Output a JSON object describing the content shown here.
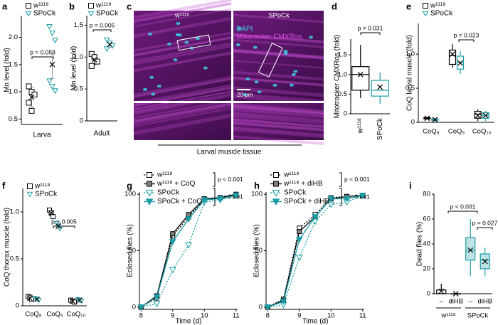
{
  "microscopy": {
    "panel": "c",
    "titles": [
      "w¹¹¹⁸",
      "SPoCk"
    ],
    "channels": [
      "DAPI",
      "Mitotracker CMXRos"
    ],
    "scale_bar": "20 μm",
    "xlabel": "Larval muscle tissue"
  },
  "chart_data": [
    {
      "panel": "a",
      "type": "strip",
      "ylabel": "Mn level (fold)",
      "xlabel": "Larva",
      "ylim": [
        0.4,
        2.4
      ],
      "yticks": [
        0.5,
        {
          "value": 1,
          "label": "1.0"
        },
        1.5,
        {
          "value": 2,
          "label": "2.0"
        }
      ],
      "series": [
        {
          "name": "w¹¹¹⁸",
          "color": "#000000",
          "marker": "square",
          "values": [
            1.1,
            1.0,
            0.95,
            0.8,
            0.65
          ],
          "mean": 0.9,
          "sd": 0.18
        },
        {
          "name": "SPoCk",
          "color": "#1a9da5",
          "marker": "triangle",
          "values": [
            2.2,
            2.08,
            1.95,
            1.2,
            1.1,
            1.02
          ],
          "mean": 1.5,
          "sd": 0.25
        }
      ],
      "annotations": [
        "p = 0.053"
      ]
    },
    {
      "panel": "b",
      "type": "strip",
      "ylabel": "Mn level (fold)",
      "xlabel": "Adult",
      "ylim": [
        0,
        1.65
      ],
      "yticks": [
        0,
        0.5,
        {
          "value": 1,
          "label": "1.0"
        },
        1.5
      ],
      "series": [
        {
          "name": "w¹¹¹⁸",
          "color": "#000000",
          "marker": "square",
          "values": [
            1.05,
            1.0,
            0.93,
            0.86
          ],
          "mean": 0.96,
          "sd": 0.08
        },
        {
          "name": "SPoCk",
          "color": "#1a9da5",
          "marker": "triangle",
          "values": [
            1.27,
            1.22,
            1.18,
            1.13
          ],
          "mean": 1.2,
          "sd": 0.05
        }
      ],
      "annotations": [
        "p = 0.005"
      ]
    },
    {
      "panel": "d",
      "type": "box",
      "ylabel": "Mitotracker CMXRos (fold)",
      "ylim": [
        0,
        1.9
      ],
      "yticks": [
        0,
        0.5,
        {
          "value": 1,
          "label": "1.0"
        },
        1.5
      ],
      "categories": [
        "w¹¹¹⁸",
        "SPoCk"
      ],
      "colors": [
        "#000000",
        "#1a9da5"
      ],
      "boxes": [
        {
          "min": 0.4,
          "q1": 0.6,
          "median": 1.0,
          "q3": 1.2,
          "max": 1.75,
          "mean": 1.0
        },
        {
          "min": 0.25,
          "q1": 0.45,
          "median": 0.6,
          "q3": 0.85,
          "max": 1.05,
          "mean": 0.68
        }
      ],
      "annotations": [
        "p = 0.031"
      ]
    },
    {
      "panel": "e",
      "type": "box",
      "ylabel": "CoQ larval muscle (fold)",
      "ylim": [
        0,
        1.45
      ],
      "yticks": [
        0,
        0.5,
        {
          "value": 1,
          "label": "1.0"
        }
      ],
      "categories": [
        "CoQ₈",
        "CoQ₉",
        "CoQ₁₀"
      ],
      "series": [
        {
          "name": "w¹¹¹⁸",
          "color": "#000000",
          "marker": "square",
          "boxes": [
            {
              "min": 0.04,
              "q1": 0.05,
              "median": 0.06,
              "q3": 0.07,
              "max": 0.08,
              "mean": 0.06
            },
            {
              "min": 0.8,
              "q1": 0.85,
              "median": 0.98,
              "q3": 1.06,
              "max": 1.15,
              "mean": 1.0
            },
            {
              "min": 0.02,
              "q1": 0.06,
              "median": 0.12,
              "q3": 0.16,
              "max": 0.19,
              "mean": 0.1
            }
          ]
        },
        {
          "name": "SPoCk",
          "color": "#1a9da5",
          "marker": "triangle",
          "boxes": [
            {
              "min": 0.02,
              "q1": 0.03,
              "median": 0.04,
              "q3": 0.05,
              "max": 0.06,
              "mean": 0.04
            },
            {
              "min": 0.71,
              "q1": 0.78,
              "median": 0.88,
              "q3": 0.97,
              "max": 1.04,
              "mean": 0.87
            },
            {
              "min": 0.02,
              "q1": 0.06,
              "median": 0.1,
              "q3": 0.14,
              "max": 0.17,
              "mean": 0.1
            }
          ]
        }
      ],
      "annotations": [
        "p = 0.023"
      ]
    },
    {
      "panel": "f",
      "type": "strip",
      "ylabel": "CoQ thorax muscle (fold)",
      "ylim": [
        0,
        1.25
      ],
      "yticks": [
        0,
        0.5,
        {
          "value": 1,
          "label": "1.0"
        }
      ],
      "categories": [
        "CoQ₈",
        "CoQ₉",
        "CoQ₁₀"
      ],
      "series": [
        {
          "name": "w¹¹¹⁸",
          "color": "#000000",
          "marker": "square",
          "values": [
            0.08,
            0.99,
            0.05
          ],
          "sd": [
            0.02,
            0.03,
            0.02
          ],
          "points": [
            [
              0.1,
              0.09,
              0.07
            ],
            [
              1.02,
              0.99,
              0.95
            ],
            [
              0.06,
              0.05,
              0.04
            ]
          ]
        },
        {
          "name": "SPoCk",
          "color": "#1a9da5",
          "marker": "triangle",
          "values": [
            0.07,
            0.85,
            0.06
          ],
          "sd": [
            0.01,
            0.03,
            0.01
          ],
          "points": [
            [
              0.08,
              0.07,
              0.06
            ],
            [
              0.88,
              0.85,
              0.82
            ],
            [
              0.07,
              0.06,
              0.05
            ]
          ]
        }
      ],
      "annotations": [
        "p = 0.005"
      ]
    },
    {
      "panel": "g",
      "type": "line",
      "ylabel": "Eclosed flies (%)",
      "xlabel": "Time (d)",
      "x": [
        8,
        8.5,
        9,
        9.5,
        10,
        10.5,
        11
      ],
      "xlim": [
        7.95,
        11.05
      ],
      "xticks": [
        8,
        9,
        10,
        11
      ],
      "ylim": [
        -2,
        102
      ],
      "yticks": [
        0,
        50,
        100
      ],
      "series": [
        {
          "name": "w¹¹¹⁸",
          "color": "#000000",
          "fill": "#ffffff",
          "marker": "square",
          "dash": true,
          "values": [
            0,
            8,
            63,
            80,
            95,
            97,
            99
          ]
        },
        {
          "name": "w¹¹¹⁸ + CoQ",
          "color": "#000000",
          "fill": "#808080",
          "marker": "square",
          "dash": false,
          "values": [
            0,
            10,
            65,
            82,
            96,
            97,
            100
          ]
        },
        {
          "name": "SPoCk",
          "color": "#1a9da5",
          "fill": "#ffffff",
          "marker": "triangle",
          "dash": true,
          "values": [
            0,
            3,
            33,
            55,
            93,
            95,
            99
          ]
        },
        {
          "name": "SPoCk + CoQ",
          "color": "#1a9da5",
          "fill": "#1a9da5",
          "marker": "triangle",
          "dash": false,
          "values": [
            0,
            9,
            58,
            78,
            95,
            96,
            99
          ]
        }
      ],
      "annotations": [
        "p < 0.001",
        "p < 0.001"
      ]
    },
    {
      "panel": "h",
      "type": "line",
      "ylabel": "Eclosed flies (%)",
      "xlabel": "Time (d)",
      "x": [
        8,
        8.5,
        9,
        9.5,
        10,
        10.5,
        11
      ],
      "xlim": [
        7.95,
        11.05
      ],
      "xticks": [
        8,
        9,
        10,
        11
      ],
      "ylim": [
        -2,
        102
      ],
      "yticks": [
        0,
        50,
        100
      ],
      "series": [
        {
          "name": "w¹¹¹⁸",
          "color": "#000000",
          "fill": "#ffffff",
          "marker": "square",
          "dash": true,
          "values": [
            0,
            7,
            70,
            82,
            97,
            98,
            99
          ]
        },
        {
          "name": "w¹¹¹⁸ + diHB",
          "color": "#000000",
          "fill": "#808080",
          "marker": "square",
          "dash": false,
          "values": [
            0,
            6,
            67,
            80,
            96,
            98,
            99
          ]
        },
        {
          "name": "SPoCk",
          "color": "#1a9da5",
          "fill": "#ffffff",
          "marker": "triangle",
          "dash": true,
          "values": [
            0,
            2,
            44,
            76,
            91,
            93,
            99
          ]
        },
        {
          "name": "SPoCk + diHB",
          "color": "#1a9da5",
          "fill": "#1a9da5",
          "marker": "triangle",
          "dash": false,
          "values": [
            0,
            5,
            60,
            80,
            96,
            96,
            99
          ]
        }
      ],
      "annotations": [
        "p < 0.001",
        "p < 0.001"
      ]
    },
    {
      "panel": "i",
      "type": "box",
      "ylabel": "Dead flies (%)",
      "ylim": [
        0,
        80
      ],
      "yticks": [
        0,
        20,
        40,
        60,
        80
      ],
      "categories": [
        "–",
        "diHB",
        "–",
        "diHB"
      ],
      "groups": [
        "w¹¹¹⁸",
        "SPoCk"
      ],
      "colors": [
        "#000000",
        "#000000",
        "#1a9da5",
        "#1a9da5"
      ],
      "fills": [
        "#ffffff",
        "#ffffff",
        "#bfe3e5",
        "#bfe3e5"
      ],
      "boxes": [
        {
          "min": 0,
          "q1": 0,
          "median": 0,
          "q3": 3,
          "max": 8,
          "mean": 2
        },
        {
          "min": 0,
          "q1": 0,
          "median": 0,
          "q3": 0,
          "max": 0,
          "mean": 0
        },
        {
          "min": 14,
          "q1": 27,
          "median": 35,
          "q3": 45,
          "max": 60,
          "mean": 35
        },
        {
          "min": 14,
          "q1": 20,
          "median": 27,
          "q3": 32,
          "max": 37,
          "mean": 26
        }
      ],
      "annotations": [
        "p < 0.001",
        "p = 0.027"
      ]
    }
  ]
}
